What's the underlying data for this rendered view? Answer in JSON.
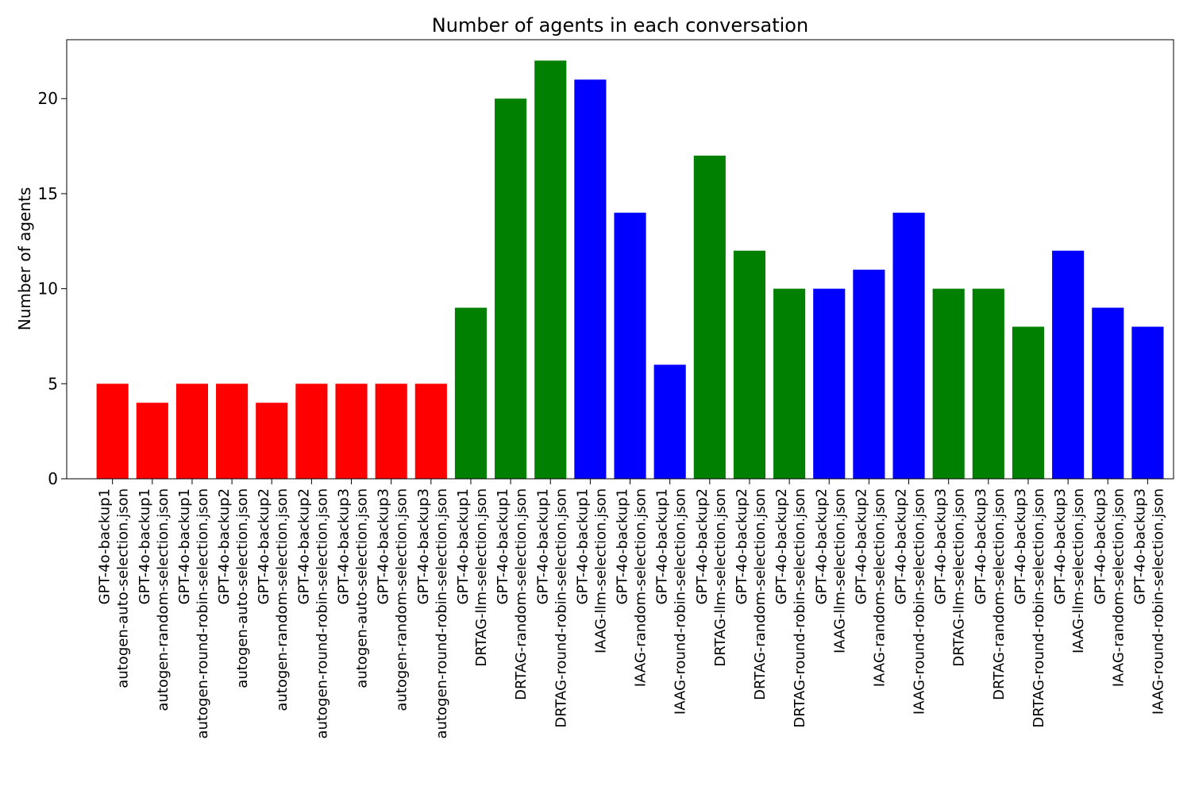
{
  "chart_data": {
    "type": "bar",
    "title": "Number of agents in each conversation",
    "xlabel": "",
    "ylabel": "Number of agents",
    "ylim": [
      0,
      23.1
    ],
    "yticks": [
      0,
      5,
      10,
      15,
      20
    ],
    "grid": false,
    "legend": "none",
    "categories": [
      [
        "GPT-4o-backup1",
        "autogen-auto-selection.json"
      ],
      [
        "GPT-4o-backup1",
        "autogen-random-selection.json"
      ],
      [
        "GPT-4o-backup1",
        "autogen-round-robin-selection.json"
      ],
      [
        "GPT-4o-backup2",
        "autogen-auto-selection.json"
      ],
      [
        "GPT-4o-backup2",
        "autogen-random-selection.json"
      ],
      [
        "GPT-4o-backup2",
        "autogen-round-robin-selection.json"
      ],
      [
        "GPT-4o-backup3",
        "autogen-auto-selection.json"
      ],
      [
        "GPT-4o-backup3",
        "autogen-random-selection.json"
      ],
      [
        "GPT-4o-backup3",
        "autogen-round-robin-selection.json"
      ],
      [
        "GPT-4o-backup1",
        "DRTAG-llm-selection.json"
      ],
      [
        "GPT-4o-backup1",
        "DRTAG-random-selection.json"
      ],
      [
        "GPT-4o-backup1",
        "DRTAG-round-robin-selection.json"
      ],
      [
        "GPT-4o-backup1",
        "IAAG-llm-selection.json"
      ],
      [
        "GPT-4o-backup1",
        "IAAG-random-selection.json"
      ],
      [
        "GPT-4o-backup1",
        "IAAG-round-robin-selection.json"
      ],
      [
        "GPT-4o-backup2",
        "DRTAG-llm-selection.json"
      ],
      [
        "GPT-4o-backup2",
        "DRTAG-random-selection.json"
      ],
      [
        "GPT-4o-backup2",
        "DRTAG-round-robin-selection.json"
      ],
      [
        "GPT-4o-backup2",
        "IAAG-llm-selection.json"
      ],
      [
        "GPT-4o-backup2",
        "IAAG-random-selection.json"
      ],
      [
        "GPT-4o-backup2",
        "IAAG-round-robin-selection.json"
      ],
      [
        "GPT-4o-backup3",
        "DRTAG-llm-selection.json"
      ],
      [
        "GPT-4o-backup3",
        "DRTAG-random-selection.json"
      ],
      [
        "GPT-4o-backup3",
        "DRTAG-round-robin-selection.json"
      ],
      [
        "GPT-4o-backup3",
        "IAAG-llm-selection.json"
      ],
      [
        "GPT-4o-backup3",
        "IAAG-random-selection.json"
      ],
      [
        "GPT-4o-backup3",
        "IAAG-round-robin-selection.json"
      ]
    ],
    "values": [
      5,
      4,
      5,
      5,
      4,
      5,
      5,
      5,
      5,
      9,
      20,
      22,
      21,
      14,
      6,
      17,
      12,
      10,
      10,
      11,
      14,
      10,
      10,
      8,
      12,
      9,
      8
    ],
    "colors": [
      "#ff0000",
      "#ff0000",
      "#ff0000",
      "#ff0000",
      "#ff0000",
      "#ff0000",
      "#ff0000",
      "#ff0000",
      "#ff0000",
      "#008000",
      "#008000",
      "#008000",
      "#0000ff",
      "#0000ff",
      "#0000ff",
      "#008000",
      "#008000",
      "#008000",
      "#0000ff",
      "#0000ff",
      "#0000ff",
      "#008000",
      "#008000",
      "#008000",
      "#0000ff",
      "#0000ff",
      "#0000ff"
    ]
  }
}
